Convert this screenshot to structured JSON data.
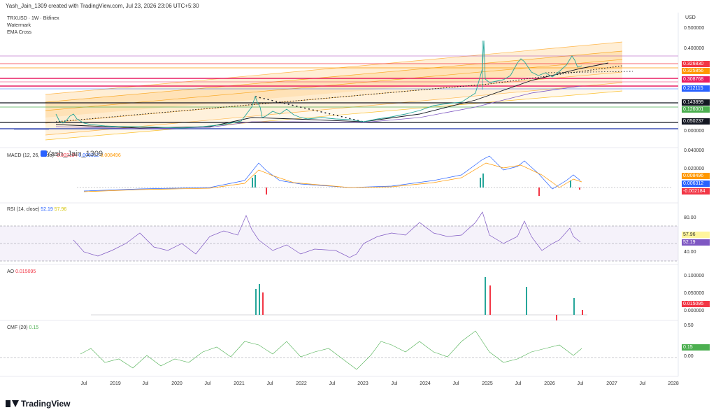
{
  "header": {
    "credit": "Yash_Jain_1309 created with TradingView.com, Jul 23, 2026 23:06 UTC+5:30"
  },
  "main_pane": {
    "symbol": "TRXUSD · 1W · Bitfinex",
    "indicator_1": "Watermark",
    "indicator_2": "EMA Cross",
    "currency": "USD",
    "watermark_text": "Yash_Jain_1309",
    "axis_labels": [
      "0.500000",
      "0.400000",
      "0.000000"
    ],
    "price_tags": [
      {
        "value": "0.326830",
        "color": "#f23645"
      },
      {
        "value": "0.325856",
        "color": "#ff9800"
      },
      {
        "value": "0.308768",
        "color": "#e91e63"
      },
      {
        "value": "0.212115",
        "color": "#2962ff"
      },
      {
        "value": "0.143899",
        "color": "#131722"
      },
      {
        "value": "0.126001",
        "color": "#4caf50"
      },
      {
        "value": "0.050237",
        "color": "#131722"
      }
    ]
  },
  "macd_pane": {
    "title": "MACD (12, 26, close)",
    "v1": "-0.002184",
    "v2": "0.006312",
    "v3": "0.008496",
    "axis_labels": [
      "0.040000",
      "0.020000"
    ],
    "tags": [
      {
        "value": "0.008496",
        "color": "#ff9800"
      },
      {
        "value": "0.006312",
        "color": "#2962ff"
      },
      {
        "value": "-0.002184",
        "color": "#f23645"
      }
    ]
  },
  "rsi_pane": {
    "title": "RSI (14, close)",
    "v1": "52.19",
    "v2": "57.96",
    "axis_labels": [
      "80.00",
      "40.00"
    ],
    "tags": [
      {
        "value": "57.96",
        "color": "#fff59d"
      },
      {
        "value": "52.19",
        "color": "#7e57c2"
      }
    ]
  },
  "ao_pane": {
    "title": "AO",
    "v1": "0.015095",
    "axis_labels": [
      "0.100000",
      "0.050000",
      "0.000000"
    ],
    "tags": [
      {
        "value": "0.015095",
        "color": "#f23645"
      }
    ]
  },
  "cmf_pane": {
    "title": "CMF (20)",
    "v1": "0.15",
    "axis_labels": [
      "0.50",
      "0.00"
    ],
    "tags": [
      {
        "value": "0.15",
        "color": "#4caf50"
      }
    ]
  },
  "time_axis": [
    "Jul",
    "2019",
    "Jul",
    "2020",
    "Jul",
    "2021",
    "Jul",
    "2022",
    "Jul",
    "2023",
    "Jul",
    "2024",
    "Jul",
    "2025",
    "Jul",
    "2026",
    "Jul",
    "2027",
    "Jul",
    "2028"
  ],
  "footer": {
    "brand": "TradingView"
  }
}
